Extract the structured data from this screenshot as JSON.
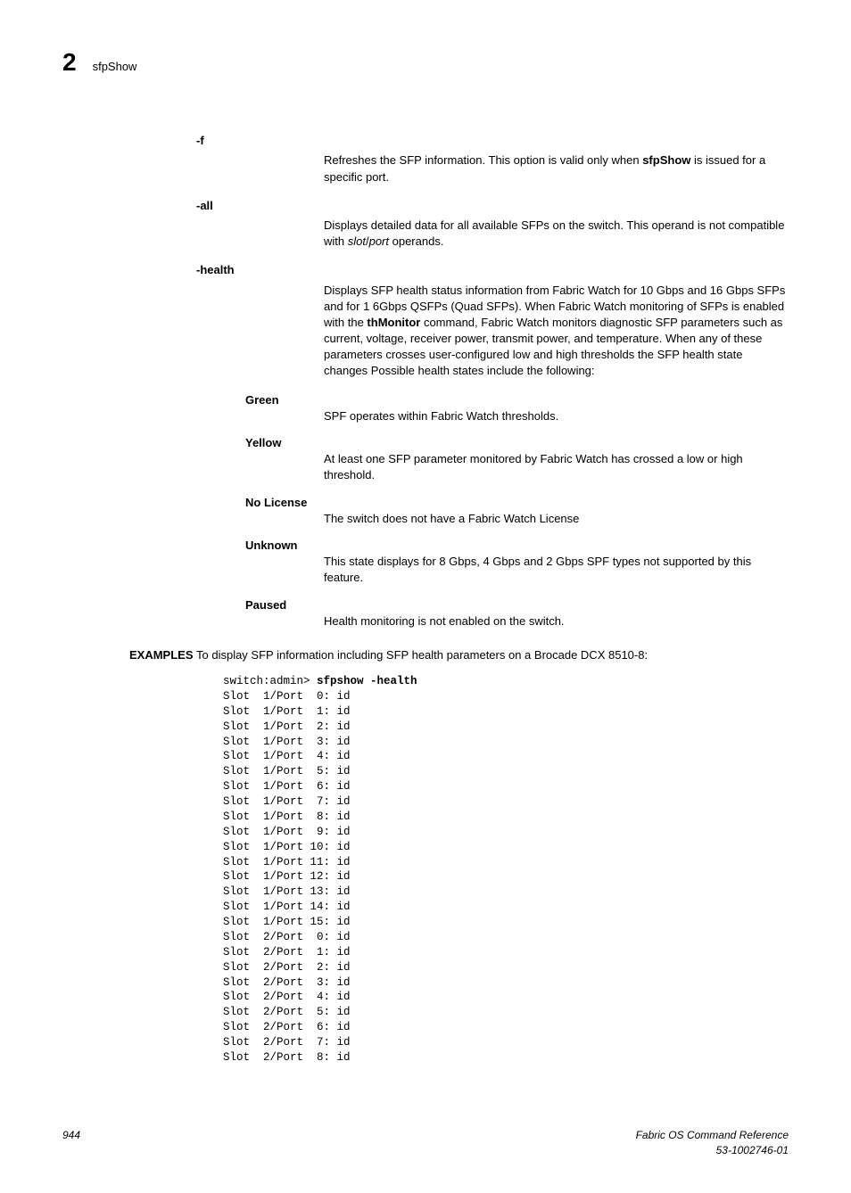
{
  "header": {
    "chapter": "2",
    "title": "sfpShow"
  },
  "options": [
    {
      "label": "-f",
      "desc_parts": [
        {
          "t": "Refreshes the SFP information. This option is valid only when "
        },
        {
          "t": "sfpShow",
          "bold": true
        },
        {
          "t": " is issued for a specific port."
        }
      ]
    },
    {
      "label": "-all",
      "desc_parts": [
        {
          "t": "Displays detailed data for all available SFPs on the switch. This operand is not compatible with "
        },
        {
          "t": "slot",
          "italic": true
        },
        {
          "t": "/"
        },
        {
          "t": "port",
          "italic": true
        },
        {
          "t": " operands."
        }
      ]
    },
    {
      "label": "-health",
      "desc_parts": [
        {
          "t": "Displays SFP health status information from Fabric Watch for 10 Gbps and 16 Gbps SFPs and for 1 6Gbps QSFPs (Quad SFPs). When Fabric Watch monitoring of SFPs is enabled with the "
        },
        {
          "t": "thMonitor",
          "bold": true
        },
        {
          "t": " command, Fabric Watch monitors diagnostic SFP parameters such as current, voltage, receiver power, transmit power, and temperature. When any of these parameters crosses user-configured low and high thresholds the SFP health state changes Possible health states include the following:"
        }
      ]
    }
  ],
  "subs": [
    {
      "label": "Green",
      "desc": "SPF operates within Fabric Watch thresholds."
    },
    {
      "label": "Yellow",
      "desc": "At least one SFP parameter monitored by Fabric Watch has crossed a low or high threshold."
    },
    {
      "label": "No License",
      "desc": "The switch does not have a Fabric Watch License"
    },
    {
      "label": "Unknown",
      "desc": "This state displays for 8 Gbps, 4 Gbps and 2 Gbps SPF types not supported by this feature."
    },
    {
      "label": "Paused",
      "desc": "Health monitoring is not enabled on the switch."
    }
  ],
  "examples": {
    "label": "EXAMPLES",
    "intro": "To display SFP information including SFP health parameters on a Brocade DCX 8510-8:",
    "prompt": "switch:admin> ",
    "command": "sfpshow -health",
    "lines": [
      "Slot  1/Port  0: id",
      "Slot  1/Port  1: id",
      "Slot  1/Port  2: id",
      "Slot  1/Port  3: id",
      "Slot  1/Port  4: id",
      "Slot  1/Port  5: id",
      "Slot  1/Port  6: id",
      "Slot  1/Port  7: id",
      "Slot  1/Port  8: id",
      "Slot  1/Port  9: id",
      "Slot  1/Port 10: id",
      "Slot  1/Port 11: id",
      "Slot  1/Port 12: id",
      "Slot  1/Port 13: id",
      "Slot  1/Port 14: id",
      "Slot  1/Port 15: id",
      "Slot  2/Port  0: id",
      "Slot  2/Port  1: id",
      "Slot  2/Port  2: id",
      "Slot  2/Port  3: id",
      "Slot  2/Port  4: id",
      "Slot  2/Port  5: id",
      "Slot  2/Port  6: id",
      "Slot  2/Port  7: id",
      "Slot  2/Port  8: id"
    ]
  },
  "footer": {
    "page": "944",
    "ref1": "Fabric OS Command Reference",
    "ref2": "53-1002746-01"
  }
}
